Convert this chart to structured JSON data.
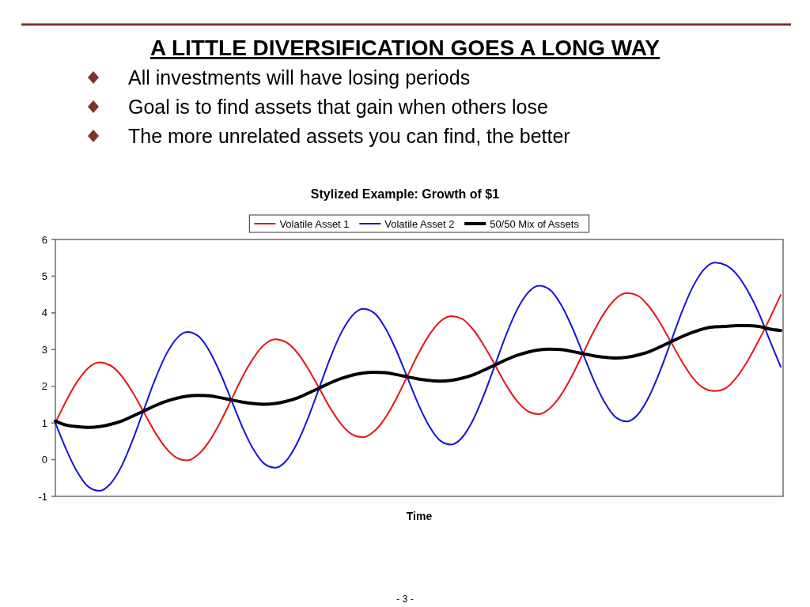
{
  "chart_data": {
    "type": "line",
    "title": "A LITTLE DIVERSIFICATION GOES A LONG WAY",
    "subtitle": "Stylized Example: Growth of $1",
    "xlabel": "Time",
    "annotations": [
      "All investments will have losing periods",
      "Goal is to find assets that gain when others lose",
      "The more unrelated assets you can find, the better",
      "- 3 -"
    ],
    "categories": [
      null,
      null,
      null,
      null,
      null,
      null,
      null,
      null,
      null,
      null,
      null,
      null,
      null,
      null,
      null,
      null,
      null,
      null,
      null,
      null,
      null,
      null,
      null,
      null,
      null,
      null,
      null,
      null,
      null,
      null,
      null,
      null,
      null,
      null,
      null,
      null,
      null,
      null,
      null,
      null,
      null,
      null,
      null,
      null,
      null,
      null,
      null,
      null,
      null,
      null,
      null,
      null,
      null,
      null,
      null,
      null,
      null,
      null,
      null,
      null,
      null,
      null,
      null,
      null,
      null,
      null,
      null
    ],
    "series": [
      {
        "name": "Volatile Asset 1",
        "color": "#e8141c",
        "values": [
          1.0,
          1.61,
          2.13,
          2.5,
          2.65,
          2.57,
          2.29,
          1.85,
          1.32,
          0.78,
          0.34,
          0.06,
          -0.02,
          0.14,
          0.5,
          1.02,
          1.63,
          2.24,
          2.76,
          3.13,
          3.28,
          3.2,
          2.92,
          2.48,
          1.95,
          1.41,
          0.97,
          0.69,
          0.61,
          0.77,
          1.13,
          1.65,
          2.26,
          2.87,
          3.39,
          3.76,
          3.91,
          3.84,
          3.55,
          3.11,
          2.58,
          2.04,
          1.6,
          1.32,
          1.24,
          1.4,
          1.76,
          2.28,
          2.89,
          3.5,
          4.02,
          4.39,
          4.54,
          4.47,
          4.18,
          3.74,
          3.21,
          2.68,
          2.23,
          1.95,
          1.87,
          1.95,
          2.25,
          2.7,
          3.25,
          3.85,
          4.49
        ]
      },
      {
        "name": "Volatile Asset 2",
        "color": "#1414d8",
        "values": [
          1.0,
          0.27,
          -0.34,
          -0.74,
          -0.85,
          -0.66,
          -0.19,
          0.51,
          1.32,
          2.13,
          2.82,
          3.29,
          3.48,
          3.37,
          2.97,
          2.36,
          1.63,
          0.9,
          0.29,
          -0.11,
          -0.22,
          -0.03,
          0.45,
          1.14,
          1.95,
          2.76,
          3.45,
          3.92,
          4.11,
          4.0,
          3.6,
          2.99,
          2.26,
          1.53,
          0.92,
          0.52,
          0.41,
          0.6,
          1.08,
          1.77,
          2.58,
          3.39,
          4.08,
          4.55,
          4.74,
          4.63,
          4.23,
          3.62,
          2.89,
          2.16,
          1.55,
          1.15,
          1.04,
          1.23,
          1.71,
          2.4,
          3.21,
          4.02,
          4.71,
          5.18,
          5.37,
          5.3,
          5.05,
          4.6,
          4.0,
          3.25,
          2.53
        ]
      },
      {
        "name": "50/50 Mix of Assets",
        "color": "#000000",
        "values": [
          1.05,
          0.94,
          0.9,
          0.88,
          0.9,
          0.96,
          1.05,
          1.18,
          1.32,
          1.46,
          1.58,
          1.67,
          1.73,
          1.75,
          1.74,
          1.69,
          1.63,
          1.57,
          1.53,
          1.51,
          1.53,
          1.59,
          1.68,
          1.81,
          1.95,
          2.09,
          2.21,
          2.3,
          2.36,
          2.38,
          2.37,
          2.32,
          2.26,
          2.2,
          2.16,
          2.14,
          2.16,
          2.22,
          2.31,
          2.44,
          2.58,
          2.72,
          2.84,
          2.93,
          2.99,
          3.01,
          3.0,
          2.95,
          2.89,
          2.83,
          2.79,
          2.77,
          2.79,
          2.85,
          2.94,
          3.07,
          3.21,
          3.35,
          3.47,
          3.57,
          3.62,
          3.63,
          3.65,
          3.65,
          3.63,
          3.56,
          3.52
        ]
      }
    ],
    "ylim": [
      -1,
      6
    ],
    "yticks": [
      -1,
      0,
      1,
      2,
      3,
      4,
      5,
      6
    ],
    "legend": "top"
  }
}
